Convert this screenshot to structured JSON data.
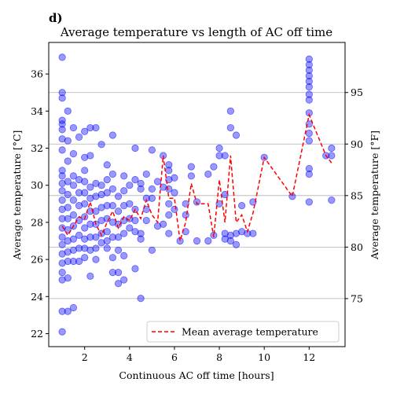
{
  "chart_data": {
    "type": "scatter",
    "panel_label": "d)",
    "title": "Average temperature vs length of AC off time",
    "xlabel": "Continuous AC off time [hours]",
    "ylabel": "Average temperature [°C]",
    "ylabel_right": "Average temperature [°F]",
    "xlim": [
      0.4,
      13.6
    ],
    "ylim": [
      21.3,
      37.7
    ],
    "ylim_right_F": [
      70.34,
      99.86
    ],
    "x_ticks": [
      2,
      4,
      6,
      8,
      10,
      12
    ],
    "x_tick_labels": [
      "2",
      "4",
      "6",
      "8",
      "10",
      "12"
    ],
    "y_ticks": [
      22,
      24,
      26,
      28,
      30,
      32,
      34,
      36
    ],
    "y_tick_labels": [
      "22",
      "24",
      "26",
      "28",
      "30",
      "32",
      "34",
      "36"
    ],
    "y_right_ticks": [
      75,
      80,
      85,
      90,
      95
    ],
    "y_right_tick_labels": [
      "75",
      "80",
      "85",
      "90",
      "95"
    ],
    "grid": "horizontal (right axis)",
    "legend_position": "lower-right",
    "colors": {
      "scatter": "#0000ff",
      "mean_line": "#ff0000"
    },
    "series": [
      {
        "name": "",
        "kind": "scatter",
        "points": [
          [
            1.0,
            36.9
          ],
          [
            1.0,
            35.0
          ],
          [
            1.0,
            34.7
          ],
          [
            1.0,
            33.5
          ],
          [
            1.0,
            33.3
          ],
          [
            1.0,
            33.0
          ],
          [
            1.0,
            32.5
          ],
          [
            1.0,
            31.9
          ],
          [
            1.0,
            30.8
          ],
          [
            1.0,
            30.5
          ],
          [
            1.0,
            30.1
          ],
          [
            1.0,
            29.7
          ],
          [
            1.0,
            29.2
          ],
          [
            1.0,
            28.7
          ],
          [
            1.0,
            28.2
          ],
          [
            1.0,
            27.7
          ],
          [
            1.0,
            27.2
          ],
          [
            1.0,
            26.8
          ],
          [
            1.0,
            26.3
          ],
          [
            1.0,
            25.8
          ],
          [
            1.0,
            25.3
          ],
          [
            1.0,
            24.9
          ],
          [
            1.0,
            23.2
          ],
          [
            1.0,
            22.1
          ],
          [
            1.25,
            34.0
          ],
          [
            1.25,
            32.4
          ],
          [
            1.25,
            31.3
          ],
          [
            1.25,
            30.2
          ],
          [
            1.25,
            29.5
          ],
          [
            1.25,
            28.8
          ],
          [
            1.25,
            28.2
          ],
          [
            1.25,
            27.6
          ],
          [
            1.25,
            27.0
          ],
          [
            1.25,
            26.4
          ],
          [
            1.25,
            25.9
          ],
          [
            1.25,
            25.0
          ],
          [
            1.25,
            23.2
          ],
          [
            1.5,
            33.1
          ],
          [
            1.5,
            31.7
          ],
          [
            1.5,
            30.5
          ],
          [
            1.5,
            30.0
          ],
          [
            1.5,
            29.2
          ],
          [
            1.5,
            28.4
          ],
          [
            1.5,
            27.8
          ],
          [
            1.5,
            27.1
          ],
          [
            1.5,
            26.5
          ],
          [
            1.5,
            25.9
          ],
          [
            1.5,
            23.4
          ],
          [
            1.75,
            32.6
          ],
          [
            1.75,
            30.3
          ],
          [
            1.75,
            29.6
          ],
          [
            1.75,
            28.9
          ],
          [
            1.75,
            28.1
          ],
          [
            1.75,
            27.3
          ],
          [
            1.75,
            26.6
          ],
          [
            1.75,
            25.9
          ],
          [
            2.0,
            32.9
          ],
          [
            2.0,
            31.5
          ],
          [
            2.0,
            30.8
          ],
          [
            2.0,
            30.2
          ],
          [
            2.0,
            29.6
          ],
          [
            2.0,
            29.0
          ],
          [
            2.0,
            28.3
          ],
          [
            2.0,
            27.7
          ],
          [
            2.0,
            27.1
          ],
          [
            2.0,
            26.6
          ],
          [
            2.0,
            26.1
          ],
          [
            2.25,
            33.1
          ],
          [
            2.25,
            31.6
          ],
          [
            2.25,
            29.9
          ],
          [
            2.25,
            29.3
          ],
          [
            2.25,
            28.6
          ],
          [
            2.25,
            27.9
          ],
          [
            2.25,
            27.2
          ],
          [
            2.25,
            26.5
          ],
          [
            2.25,
            25.1
          ],
          [
            2.5,
            33.1
          ],
          [
            2.5,
            30.1
          ],
          [
            2.5,
            29.4
          ],
          [
            2.5,
            28.6
          ],
          [
            2.5,
            27.9
          ],
          [
            2.5,
            27.2
          ],
          [
            2.5,
            26.6
          ],
          [
            2.5,
            26.0
          ],
          [
            2.75,
            32.2
          ],
          [
            2.75,
            30.0
          ],
          [
            2.75,
            29.5
          ],
          [
            2.75,
            28.8
          ],
          [
            2.75,
            28.1
          ],
          [
            2.75,
            27.4
          ],
          [
            2.75,
            26.9
          ],
          [
            3.0,
            31.1
          ],
          [
            3.0,
            30.3
          ],
          [
            3.0,
            29.6
          ],
          [
            3.0,
            28.9
          ],
          [
            3.0,
            28.2
          ],
          [
            3.0,
            27.5
          ],
          [
            3.0,
            27.0
          ],
          [
            3.0,
            26.6
          ],
          [
            3.25,
            32.7
          ],
          [
            3.25,
            30.6
          ],
          [
            3.25,
            29.8
          ],
          [
            3.25,
            28.9
          ],
          [
            3.25,
            28.0
          ],
          [
            3.25,
            27.2
          ],
          [
            3.25,
            26.1
          ],
          [
            3.25,
            25.3
          ],
          [
            3.5,
            29.4
          ],
          [
            3.5,
            28.6
          ],
          [
            3.5,
            27.9
          ],
          [
            3.5,
            27.2
          ],
          [
            3.5,
            26.5
          ],
          [
            3.5,
            24.7
          ],
          [
            3.5,
            25.3
          ],
          [
            3.75,
            30.5
          ],
          [
            3.75,
            29.7
          ],
          [
            3.75,
            28.9
          ],
          [
            3.75,
            28.1
          ],
          [
            3.75,
            27.4
          ],
          [
            3.75,
            26.2
          ],
          [
            3.75,
            24.9
          ],
          [
            4.0,
            30.0
          ],
          [
            4.0,
            29.0
          ],
          [
            4.0,
            28.2
          ],
          [
            4.0,
            27.7
          ],
          [
            4.25,
            32.0
          ],
          [
            4.25,
            30.3
          ],
          [
            4.25,
            28.7
          ],
          [
            4.25,
            28.1
          ],
          [
            4.25,
            27.5
          ],
          [
            4.25,
            25.5
          ],
          [
            4.5,
            30.1
          ],
          [
            4.5,
            29.8
          ],
          [
            4.5,
            27.4
          ],
          [
            4.5,
            27.1
          ],
          [
            4.5,
            23.9
          ],
          [
            4.75,
            30.6
          ],
          [
            4.75,
            29.3
          ],
          [
            4.75,
            28.7
          ],
          [
            4.75,
            28.1
          ],
          [
            5.0,
            31.9
          ],
          [
            5.0,
            29.8
          ],
          [
            5.0,
            29.3
          ],
          [
            5.0,
            26.5
          ],
          [
            5.25,
            30.2
          ],
          [
            5.25,
            27.8
          ],
          [
            5.5,
            31.6
          ],
          [
            5.5,
            29.9
          ],
          [
            5.5,
            27.9
          ],
          [
            5.75,
            31.1
          ],
          [
            5.75,
            30.8
          ],
          [
            5.75,
            30.3
          ],
          [
            5.75,
            29.8
          ],
          [
            5.75,
            29.0
          ],
          [
            5.75,
            28.4
          ],
          [
            5.75,
            27.4
          ],
          [
            6.0,
            30.4
          ],
          [
            6.0,
            29.6
          ],
          [
            6.0,
            28.7
          ],
          [
            6.25,
            27.0
          ],
          [
            6.5,
            29.0
          ],
          [
            6.5,
            28.4
          ],
          [
            6.5,
            27.5
          ],
          [
            6.75,
            31.0
          ],
          [
            6.75,
            30.5
          ],
          [
            7.0,
            29.1
          ],
          [
            7.0,
            27.0
          ],
          [
            7.5,
            30.6
          ],
          [
            7.5,
            27.0
          ],
          [
            7.75,
            31.0
          ],
          [
            7.75,
            27.3
          ],
          [
            8.0,
            32.0
          ],
          [
            8.0,
            31.6
          ],
          [
            8.0,
            29.0
          ],
          [
            8.25,
            31.6
          ],
          [
            8.25,
            29.5
          ],
          [
            8.25,
            27.4
          ],
          [
            8.25,
            27.1
          ],
          [
            8.5,
            34.0
          ],
          [
            8.5,
            33.1
          ],
          [
            8.5,
            27.3
          ],
          [
            8.5,
            27.0
          ],
          [
            8.75,
            32.7
          ],
          [
            8.75,
            27.4
          ],
          [
            8.75,
            26.8
          ],
          [
            9.0,
            28.9
          ],
          [
            9.0,
            27.5
          ],
          [
            9.25,
            27.4
          ],
          [
            9.5,
            29.1
          ],
          [
            9.5,
            27.4
          ],
          [
            10.0,
            31.5
          ],
          [
            11.25,
            29.4
          ],
          [
            12.0,
            36.8
          ],
          [
            12.0,
            36.5
          ],
          [
            12.0,
            36.2
          ],
          [
            12.0,
            35.9
          ],
          [
            12.0,
            35.6
          ],
          [
            12.0,
            35.3
          ],
          [
            12.0,
            34.9
          ],
          [
            12.0,
            34.6
          ],
          [
            12.0,
            33.9
          ],
          [
            12.0,
            33.3
          ],
          [
            12.0,
            32.8
          ],
          [
            12.0,
            32.4
          ],
          [
            12.0,
            30.9
          ],
          [
            12.0,
            30.6
          ],
          [
            12.0,
            29.1
          ],
          [
            12.75,
            31.6
          ],
          [
            13.0,
            32.0
          ],
          [
            13.0,
            31.6
          ],
          [
            13.0,
            29.2
          ]
        ]
      },
      {
        "name": "Mean average temperature",
        "kind": "line",
        "style": "dashed",
        "x": [
          1.0,
          1.25,
          1.5,
          1.75,
          2.0,
          2.25,
          2.5,
          2.75,
          3.0,
          3.25,
          3.5,
          3.75,
          4.0,
          4.25,
          4.5,
          4.75,
          5.0,
          5.25,
          5.5,
          5.75,
          6.0,
          6.25,
          6.5,
          6.75,
          7.0,
          7.25,
          7.5,
          7.75,
          8.0,
          8.25,
          8.5,
          8.75,
          9.0,
          9.25,
          9.5,
          10.0,
          11.25,
          12.0,
          12.75,
          13.0
        ],
        "y": [
          27.8,
          27.3,
          27.8,
          28.3,
          28.2,
          29.1,
          27.9,
          27.3,
          28.0,
          28.6,
          27.7,
          28.3,
          28.1,
          28.7,
          28.2,
          29.2,
          28.4,
          28.0,
          31.6,
          29.3,
          29.3,
          27.0,
          28.0,
          30.1,
          29.0,
          29.0,
          29.0,
          27.2,
          30.3,
          28.0,
          31.6,
          28.0,
          28.4,
          27.5,
          28.5,
          31.5,
          29.4,
          33.8,
          31.6,
          31.2
        ]
      }
    ]
  }
}
